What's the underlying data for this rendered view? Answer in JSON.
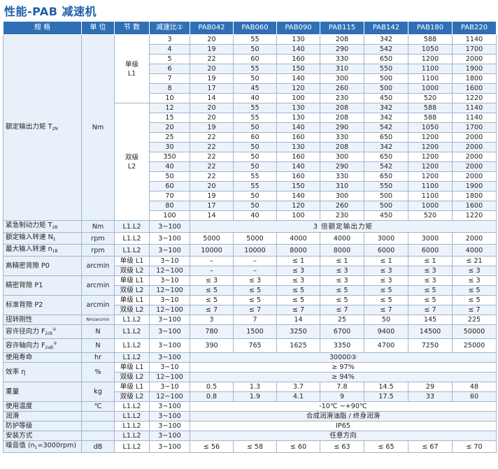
{
  "title": "性能-PAB 减速机",
  "header": [
    "规 格",
    "单 位",
    "节 数",
    "减速比①",
    "PAB042",
    "PAB060",
    "PAB090",
    "PAB115",
    "PAB142",
    "PAB180",
    "PAB220"
  ],
  "torque": {
    "label": "额定输出力矩 T",
    "label_sub": "2N",
    "unit": "Nm",
    "single_stage": "单级",
    "single_code": "L1",
    "double_stage": "双级",
    "double_code": "L2",
    "rows_l1": [
      [
        "3",
        "20",
        "55",
        "130",
        "208",
        "342",
        "588",
        "1140"
      ],
      [
        "4",
        "19",
        "50",
        "140",
        "290",
        "542",
        "1050",
        "1700"
      ],
      [
        "5",
        "22",
        "60",
        "160",
        "330",
        "650",
        "1200",
        "2000"
      ],
      [
        "6",
        "20",
        "55",
        "150",
        "310",
        "550",
        "1100",
        "1900"
      ],
      [
        "7",
        "19",
        "50",
        "140",
        "300",
        "500",
        "1100",
        "1800"
      ],
      [
        "8",
        "17",
        "45",
        "120",
        "260",
        "500",
        "1000",
        "1600"
      ],
      [
        "10",
        "14",
        "40",
        "100",
        "230",
        "450",
        "520",
        "1220"
      ]
    ],
    "rows_l2": [
      [
        "12",
        "20",
        "55",
        "130",
        "208",
        "342",
        "588",
        "1140"
      ],
      [
        "15",
        "20",
        "55",
        "130",
        "208",
        "342",
        "588",
        "1140"
      ],
      [
        "20",
        "19",
        "50",
        "140",
        "290",
        "542",
        "1050",
        "1700"
      ],
      [
        "25",
        "22",
        "60",
        "160",
        "330",
        "650",
        "1200",
        "2000"
      ],
      [
        "30",
        "22",
        "50",
        "130",
        "208",
        "342",
        "1200",
        "2000"
      ],
      [
        "350",
        "22",
        "50",
        "160",
        "300",
        "650",
        "1200",
        "2000"
      ],
      [
        "40",
        "22",
        "50",
        "140",
        "290",
        "542",
        "1200",
        "2000"
      ],
      [
        "50",
        "22",
        "55",
        "160",
        "330",
        "650",
        "1200",
        "2000"
      ],
      [
        "60",
        "20",
        "55",
        "150",
        "310",
        "550",
        "1100",
        "1900"
      ],
      [
        "70",
        "19",
        "50",
        "140",
        "300",
        "500",
        "1100",
        "1800"
      ],
      [
        "80",
        "17",
        "50",
        "120",
        "260",
        "500",
        "1000",
        "1600"
      ],
      [
        "100",
        "14",
        "40",
        "100",
        "230",
        "450",
        "520",
        "1220"
      ]
    ]
  },
  "rows": [
    {
      "label": "紧急制动力矩 T",
      "sub": "2B",
      "unit": "Nm",
      "stage": "L1.L2",
      "ratio": "3~100",
      "span": "3 倍额定输出力矩"
    },
    {
      "label": "额定输入转速 N",
      "sub": "1",
      "unit": "rpm",
      "stage": "L1.L2",
      "ratio": "3~100",
      "vals": [
        "5000",
        "5000",
        "4000",
        "4000",
        "3000",
        "3000",
        "2000"
      ]
    },
    {
      "label": "最大输入转速 n",
      "sub": "1B",
      "unit": "rpm",
      "stage": "L1.L2",
      "ratio": "3~100",
      "vals": [
        "10000",
        "10000",
        "8000",
        "8000",
        "6000",
        "6000",
        "4000"
      ]
    }
  ],
  "backlash": [
    {
      "label": "高精密背隙 P0",
      "unit": "arcmin",
      "l1": {
        "stage": "单级 L1",
        "ratio": "3~10",
        "vals": [
          "–",
          "–",
          "≤ 1",
          "≤ 1",
          "≤ 1",
          "≤ 1",
          "≤ 21"
        ]
      },
      "l2": {
        "stage": "双级 L2",
        "ratio": "12~100",
        "vals": [
          "–",
          "–",
          "≤ 3",
          "≤ 3",
          "≤ 3",
          "≤ 3",
          "≤ 3"
        ]
      }
    },
    {
      "label": "精密背隙 P1",
      "unit": "arcmin",
      "l1": {
        "stage": "单级 L1",
        "ratio": "3~10",
        "vals": [
          "≤ 3",
          "≤ 3",
          "≤ 3",
          "≤ 3",
          "≤ 3",
          "≤ 3",
          "≤ 3"
        ]
      },
      "l2": {
        "stage": "双级 L2",
        "ratio": "12~100",
        "vals": [
          "≤ 5",
          "≤ 5",
          "≤ 5",
          "≤ 5",
          "≤ 5",
          "≤ 5",
          "≤ 5"
        ]
      }
    },
    {
      "label": "标准背隙 P2",
      "unit": "arcmin",
      "l1": {
        "stage": "单级 L1",
        "ratio": "3~10",
        "vals": [
          "≤ 5",
          "≤ 5",
          "≤ 5",
          "≤ 5",
          "≤ 5",
          "≤ 5",
          "≤ 5"
        ]
      },
      "l2": {
        "stage": "双级 L2",
        "ratio": "12~100",
        "vals": [
          "≤ 7",
          "≤ 7",
          "≤ 7",
          "≤ 7",
          "≤ 7",
          "≤ 7",
          "≤ 7"
        ]
      }
    }
  ],
  "rigidity": {
    "label": "扭转刚性",
    "unit": "Nm/arcmin",
    "stage": "L1.L2",
    "ratio": "3~100",
    "vals": [
      "3",
      "7",
      "14",
      "25",
      "50",
      "145",
      "225"
    ]
  },
  "radial": {
    "label": "容许径向力 F",
    "sub": "2rB",
    "sup": "②",
    "unit": "N",
    "stage": "L1.L2",
    "ratio": "3~100",
    "vals": [
      "780",
      "1500",
      "3250",
      "6700",
      "9400",
      "14500",
      "50000"
    ]
  },
  "axial": {
    "label": "容许轴向力 F",
    "sub": "2aB",
    "sup": "②",
    "unit": "N",
    "stage": "L1.L2",
    "ratio": "3~100",
    "vals": [
      "390",
      "765",
      "1625",
      "3350",
      "4700",
      "7250",
      "25000"
    ]
  },
  "life": {
    "label": "使用寿命",
    "unit": "hr",
    "stage": "L1.L2",
    "ratio": "3~100",
    "span": "30000③"
  },
  "efficiency": {
    "label": "效率 η",
    "unit": "%",
    "l1": {
      "stage": "单级 L1",
      "ratio": "3~10",
      "span": "≥ 97%"
    },
    "l2": {
      "stage": "双级 L2",
      "ratio": "12~100",
      "span": "≥ 94%"
    }
  },
  "weight": {
    "label": "重量",
    "unit": "kg",
    "l1": {
      "stage": "单级 L1",
      "ratio": "3~10",
      "vals": [
        "0.5",
        "1.3",
        "3.7",
        "7.8",
        "14.5",
        "29",
        "48"
      ]
    },
    "l2": {
      "stage": "双级 L2",
      "ratio": "12~100",
      "vals": [
        "0.8",
        "1.9",
        "4.1",
        "9",
        "17.5",
        "33",
        "60"
      ]
    }
  },
  "tail": [
    {
      "label": "使用温度",
      "unit": "℃",
      "stage": "L1.L2",
      "ratio": "3~100",
      "span": "-10℃ ~+90℃"
    },
    {
      "label": "润滑",
      "unit": "",
      "stage": "L1.L2",
      "ratio": "3~100",
      "span": "合成润滑油脂 / 终身润滑"
    },
    {
      "label": "防护等级",
      "unit": "",
      "stage": "L1.L2",
      "ratio": "3~100",
      "span": "IP65"
    },
    {
      "label": "安装方式",
      "unit": "",
      "stage": "L1.L2",
      "ratio": "3~100",
      "span": "任意方向"
    }
  ],
  "noise": {
    "label": "噪音值 (n",
    "label_sub": "1",
    "label_tail": "=3000rpm)",
    "unit": "dB",
    "stage": "L1.L2",
    "ratio": "3~100",
    "vals": [
      "≤ 56",
      "≤ 58",
      "≤ 60",
      "≤ 63",
      "≤ 65",
      "≤ 67",
      "≤ 70"
    ]
  }
}
